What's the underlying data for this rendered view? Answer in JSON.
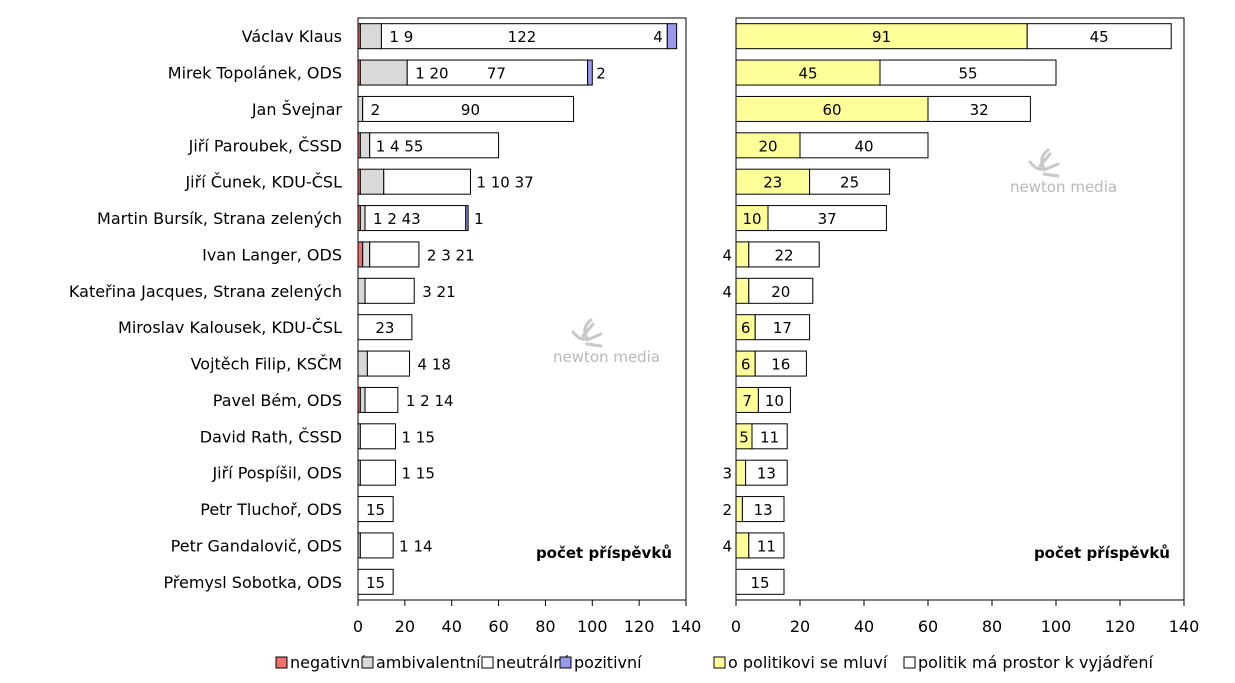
{
  "chart_data": [
    {
      "type": "bar",
      "orientation": "horizontal",
      "stacked": true,
      "categories": [
        "Václav Klaus",
        "Mirek Topolánek, ODS",
        "Jan Švejnar",
        "Jiří Paroubek, ČSSD",
        "Jiří Čunek, KDU-ČSL",
        "Martin Bursík, Strana zelených",
        "Ivan Langer, ODS",
        "Kateřina Jacques, Strana zelených",
        "Miroslav Kalousek, KDU-ČSL",
        "Vojtěch Filip, KSČM",
        "Pavel Bém, ODS",
        "David Rath, ČSSD",
        "Jiří Pospíšil, ODS",
        "Petr Tluchoř, ODS",
        "Petr Gandalovič, ODS",
        "Přemysl Sobotka, ODS"
      ],
      "series": [
        {
          "name": "negativní",
          "color": "#f07070",
          "values": [
            1,
            1,
            0,
            1,
            1,
            1,
            2,
            0,
            0,
            0,
            1,
            0,
            0,
            0,
            0,
            0
          ]
        },
        {
          "name": "ambivalentní",
          "color": "#d9d9d9",
          "values": [
            9,
            20,
            2,
            4,
            10,
            2,
            3,
            3,
            0,
            4,
            2,
            1,
            1,
            0,
            1,
            0
          ]
        },
        {
          "name": "neutrální",
          "color": "#ffffff",
          "values": [
            122,
            77,
            90,
            55,
            37,
            43,
            21,
            21,
            23,
            18,
            14,
            15,
            15,
            15,
            14,
            15
          ]
        },
        {
          "name": "pozitivní",
          "color": "#9999ee",
          "values": [
            4,
            2,
            0,
            0,
            0,
            1,
            0,
            0,
            0,
            0,
            0,
            0,
            0,
            0,
            0,
            0
          ]
        }
      ],
      "labels": [
        "1 9|122|4",
        "1 20 77|2",
        "2|90",
        "1 4 55",
        "1 10 37",
        "1 2 43|1",
        "2 3 21",
        "3 21",
        "23",
        "4 18",
        "1 2 14",
        "1 15",
        "1 15",
        "15",
        "1 14",
        "15"
      ],
      "xlim": [
        0,
        140
      ],
      "xticks": [
        0,
        20,
        40,
        60,
        80,
        100,
        120,
        140
      ],
      "annotation": "počet příspěvků"
    },
    {
      "type": "bar",
      "orientation": "horizontal",
      "stacked": true,
      "categories": [
        "Václav Klaus",
        "Mirek Topolánek, ODS",
        "Jan Švejnar",
        "Jiří Paroubek, ČSSD",
        "Jiří Čunek, KDU-ČSL",
        "Martin Bursík, Strana zelených",
        "Ivan Langer, ODS",
        "Kateřina Jacques, Strana zelených",
        "Miroslav Kalousek, KDU-ČSL",
        "Vojtěch Filip, KSČM",
        "Pavel Bém, ODS",
        "David Rath, ČSSD",
        "Jiří Pospíšil, ODS",
        "Petr Tluchoř, ODS",
        "Petr Gandalovič, ODS",
        "Přemysl Sobotka, ODS"
      ],
      "series": [
        {
          "name": "o politikovi se mluví",
          "color": "#ffff99",
          "values": [
            91,
            45,
            60,
            20,
            23,
            10,
            4,
            4,
            6,
            6,
            7,
            5,
            3,
            2,
            4,
            0
          ]
        },
        {
          "name": "politik má prostor k vyjádření",
          "color": "#ffffff",
          "values": [
            45,
            55,
            32,
            40,
            25,
            37,
            22,
            20,
            17,
            16,
            10,
            11,
            13,
            13,
            11,
            15
          ]
        }
      ],
      "xlim": [
        0,
        140
      ],
      "xticks": [
        0,
        20,
        40,
        60,
        80,
        100,
        120,
        140
      ],
      "annotation": "počet příspěvků"
    }
  ],
  "watermark": "newton media"
}
